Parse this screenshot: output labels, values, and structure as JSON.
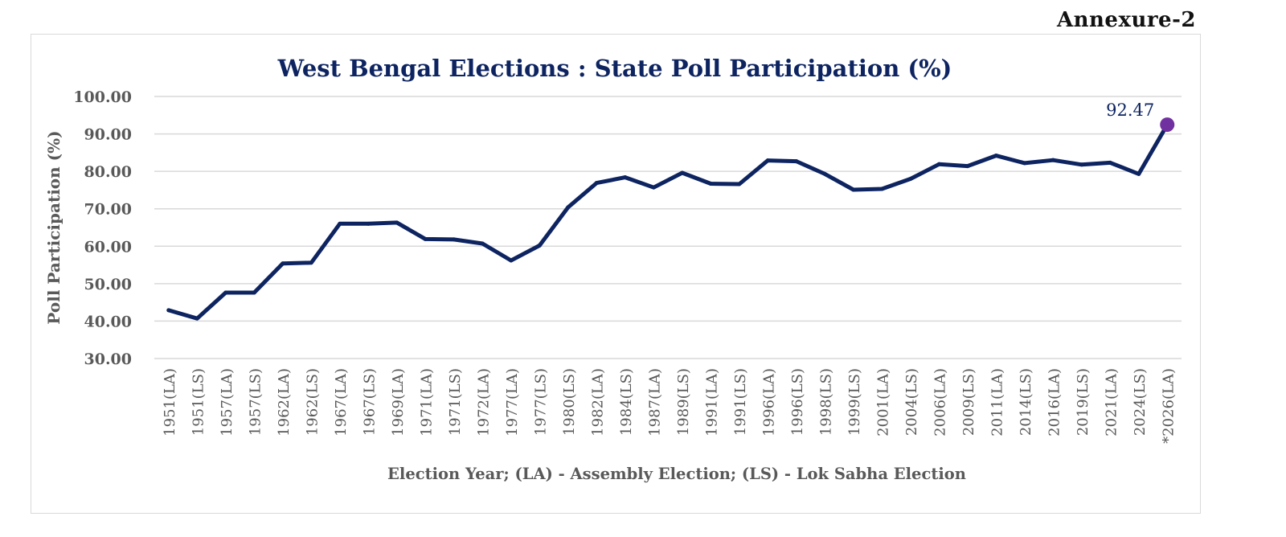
{
  "annexure": "Annexure-2",
  "chart_data": {
    "type": "line",
    "title": "West Bengal Elections : State Poll Participation (%)",
    "xlabel": "Election Year; (LA) - Assembly Election; (LS) - Lok Sabha Election",
    "ylabel": "Poll Participation (%)",
    "ylim": [
      30,
      100
    ],
    "yticks": [
      "100.00",
      "90.00",
      "80.00",
      "70.00",
      "60.00",
      "50.00",
      "40.00",
      "30.00"
    ],
    "ytick_values": [
      100,
      90,
      80,
      70,
      60,
      50,
      40,
      30
    ],
    "grid": true,
    "categories": [
      "1951(LA)",
      "1951(LS)",
      "1957(LA)",
      "1957(LS)",
      "1962(LA)",
      "1962(LS)",
      "1967(LA)",
      "1967(LS)",
      "1969(LA)",
      "1971(LA)",
      "1971(LS)",
      "1972(LA)",
      "1977(LA)",
      "1977(LS)",
      "1980(LS)",
      "1982(LA)",
      "1984(LS)",
      "1987(LA)",
      "1989(LS)",
      "1991(LA)",
      "1991(LS)",
      "1996(LA)",
      "1996(LS)",
      "1998(LS)",
      "1999(LS)",
      "2001(LA)",
      "2004(LS)",
      "2006(LA)",
      "2009(LS)",
      "2011(LA)",
      "2014(LS)",
      "2016(LA)",
      "2019(LS)",
      "2021(LA)",
      "2024(LS)",
      "*2026(LA)"
    ],
    "series": [
      {
        "name": "Poll Participation (%)",
        "color": "#0d2461",
        "values": [
          42.9,
          40.7,
          47.6,
          47.6,
          55.4,
          55.6,
          66.0,
          66.0,
          66.3,
          61.9,
          61.8,
          60.7,
          56.2,
          60.2,
          70.4,
          76.9,
          78.4,
          75.7,
          79.6,
          76.7,
          76.6,
          82.9,
          82.7,
          79.3,
          75.1,
          75.3,
          78.0,
          81.9,
          81.4,
          84.2,
          82.2,
          83.0,
          81.8,
          82.3,
          79.3,
          92.47
        ]
      }
    ],
    "annotations": [
      {
        "category": "*2026(LA)",
        "label": "92.47",
        "marker_color": "#7030a0"
      }
    ]
  }
}
